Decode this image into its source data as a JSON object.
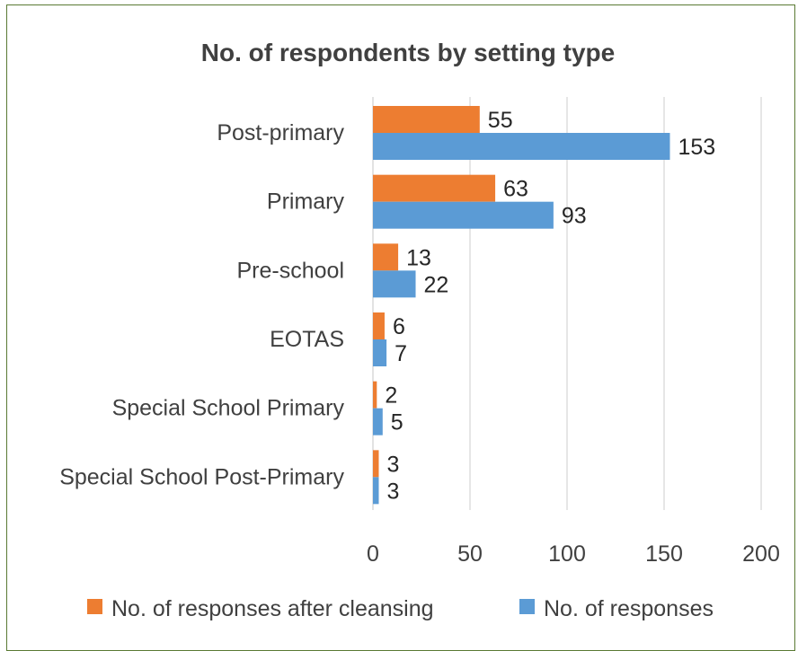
{
  "chart_data": {
    "type": "bar",
    "orientation": "horizontal",
    "title": "No. of respondents by setting type",
    "xlabel": "",
    "ylabel": "",
    "categories": [
      "Post-primary",
      "Primary",
      "Pre-school",
      "EOTAS",
      "Special School Primary",
      "Special School Post-Primary"
    ],
    "series": [
      {
        "name": "No. of responses after cleansing",
        "color": "#ED7D31",
        "values": [
          55,
          63,
          13,
          6,
          2,
          3
        ]
      },
      {
        "name": "No. of responses",
        "color": "#5B9BD5",
        "values": [
          153,
          93,
          22,
          7,
          5,
          3
        ]
      }
    ],
    "xlim": [
      0,
      200
    ],
    "xticks": [
      0,
      50,
      100,
      150,
      200
    ],
    "grid": true,
    "legend": "bottom",
    "data_labels": true
  }
}
